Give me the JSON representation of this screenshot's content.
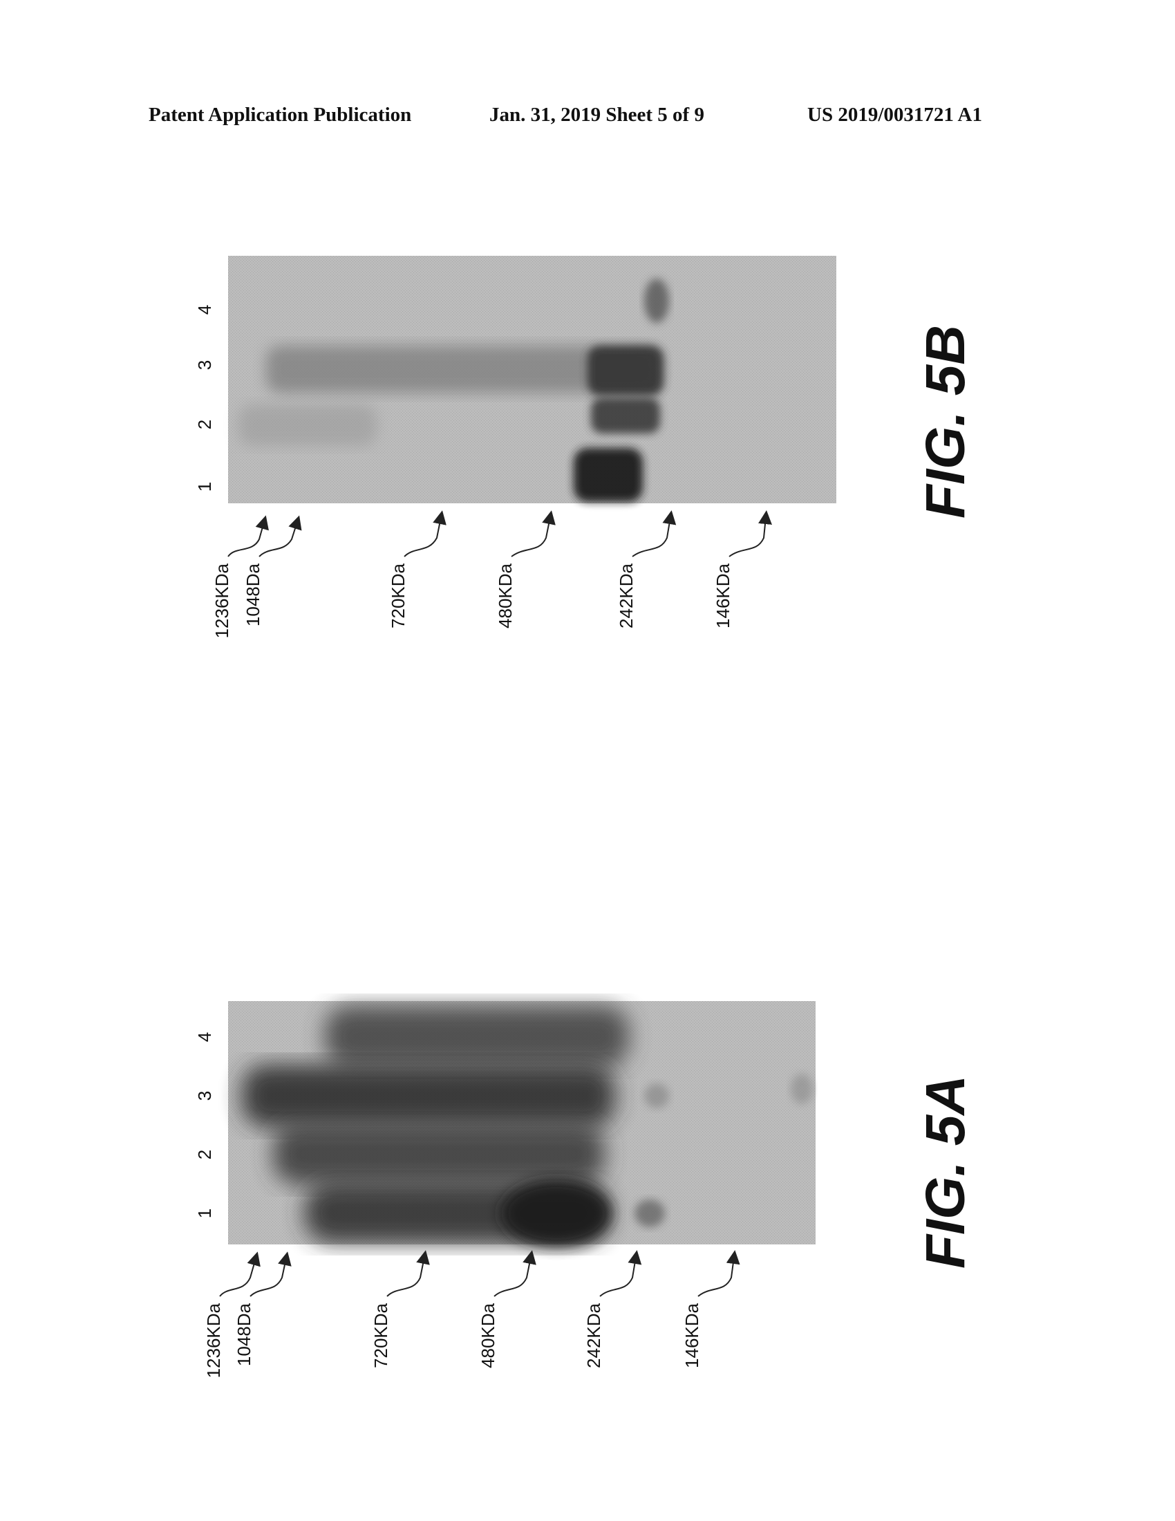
{
  "header": {
    "left": "Patent Application Publication",
    "middle": "Jan. 31, 2019  Sheet 5 of 9",
    "right": "US 2019/0031721 A1"
  },
  "figures": [
    {
      "id": "fig-5b",
      "label": "FIG. 5B",
      "lanes": [
        "1",
        "2",
        "3",
        "4"
      ],
      "markers": [
        "1236KDa",
        "1048Da",
        "720KDa",
        "480KDa",
        "242KDa",
        "146KDa"
      ]
    },
    {
      "id": "fig-5a",
      "label": "FIG. 5A",
      "lanes": [
        "1",
        "2",
        "3",
        "4"
      ],
      "markers": [
        "1236KDa",
        "1048Da",
        "720KDa",
        "480KDa",
        "242KDa",
        "146KDa"
      ]
    }
  ],
  "colors": {
    "gel_background": "#b9b9b9",
    "band_dark": "#2a2a2a",
    "ink": "#111111"
  }
}
